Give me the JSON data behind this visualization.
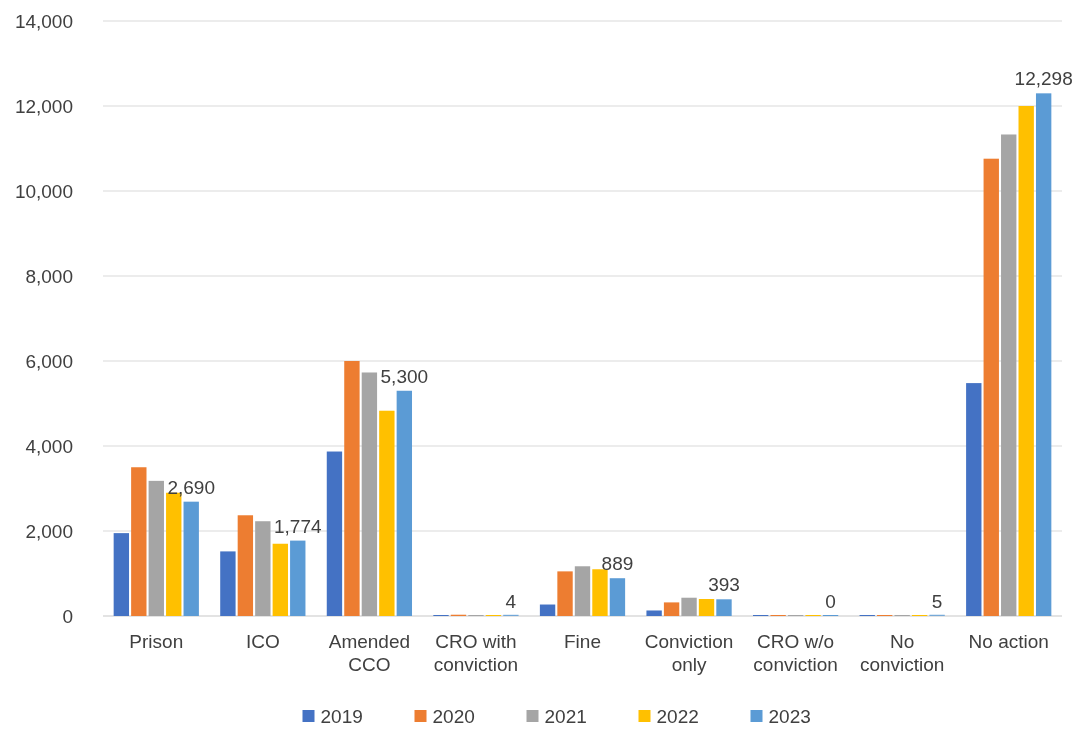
{
  "chart_data": {
    "type": "bar",
    "categories": [
      "Prison",
      "ICO",
      "Amended CCO",
      "CRO with conviction",
      "Fine",
      "Conviction only",
      "CRO w/o conviction",
      "No conviction",
      "No action"
    ],
    "series": [
      {
        "name": "2019",
        "color": "#4472c4",
        "values": [
          1950,
          1520,
          3870,
          0,
          270,
          130,
          0,
          0,
          5480
        ]
      },
      {
        "name": "2020",
        "color": "#ed7d31",
        "values": [
          3500,
          2370,
          6000,
          30,
          1050,
          320,
          0,
          0,
          10760
        ]
      },
      {
        "name": "2021",
        "color": "#a5a5a5",
        "values": [
          3180,
          2230,
          5730,
          0,
          1170,
          430,
          0,
          0,
          11330
        ]
      },
      {
        "name": "2022",
        "color": "#ffc000",
        "values": [
          2900,
          1700,
          4830,
          0,
          1100,
          400,
          0,
          0,
          12000
        ]
      },
      {
        "name": "2023",
        "color": "#5b9bd5",
        "values": [
          2690,
          1774,
          5300,
          4,
          889,
          393,
          0,
          5,
          12298
        ],
        "value_labels": [
          "2,690",
          "1,774",
          "5,300",
          "4",
          "889",
          "393",
          "0",
          "5",
          "12,298"
        ]
      }
    ],
    "ylim": [
      0,
      14000
    ],
    "yticks": [
      {
        "value": 0,
        "label": "0"
      },
      {
        "value": 2000,
        "label": "2,000"
      },
      {
        "value": 4000,
        "label": "4,000"
      },
      {
        "value": 6000,
        "label": "6,000"
      },
      {
        "value": 8000,
        "label": "8,000"
      },
      {
        "value": 10000,
        "label": "10,000"
      },
      {
        "value": 12000,
        "label": "12,000"
      },
      {
        "value": 14000,
        "label": "14,000"
      }
    ],
    "grid": "y",
    "legend": "bottom"
  }
}
